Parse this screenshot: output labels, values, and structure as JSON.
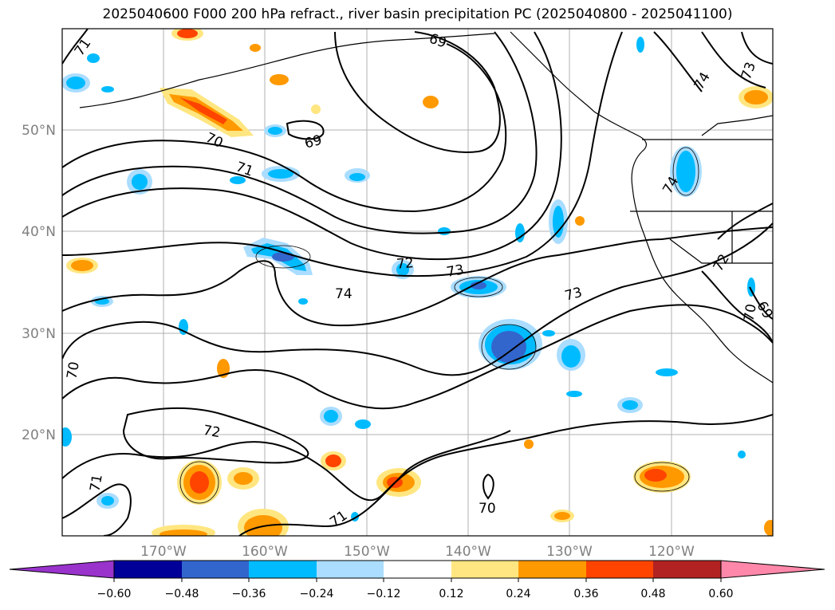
{
  "title": "2025040600 F000 200 hPa refract., river basin precipitation PC (2025040800 - 2025041100)",
  "map": {
    "lon_range": [
      -180,
      -110
    ],
    "lat_range": [
      10,
      60
    ],
    "lat_labels": [
      "50°N",
      "40°N",
      "30°N",
      "20°N"
    ],
    "lon_labels": [
      "170°W",
      "160°W",
      "150°W",
      "140°W",
      "130°W",
      "120°W"
    ],
    "contour_labels": [
      "71",
      "70",
      "71",
      "69",
      "69",
      "72",
      "73",
      "74",
      "73",
      "74",
      "73",
      "72",
      "70",
      "69",
      "70",
      "72",
      "71",
      "71",
      "70",
      "74"
    ]
  },
  "colorbar": {
    "ticks": [
      "−0.60",
      "−0.48",
      "−0.36",
      "−0.24",
      "−0.12",
      "0.12",
      "0.24",
      "0.36",
      "0.48",
      "0.60"
    ],
    "colors": [
      "#9933cc",
      "#000099",
      "#3366cc",
      "#00bbff",
      "#aaddff",
      "#ffffff",
      "#ffe680",
      "#ff9900",
      "#ff4400",
      "#b22222",
      "#ff88aa"
    ]
  }
}
